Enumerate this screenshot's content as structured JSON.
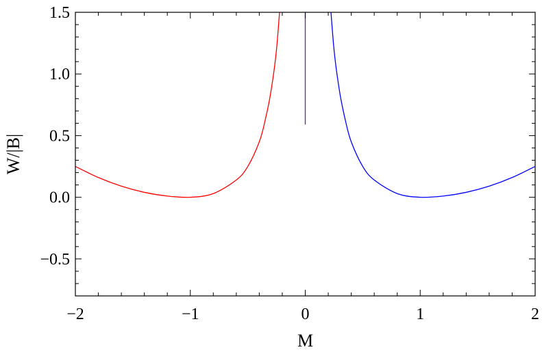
{
  "chart_data": {
    "type": "line",
    "title": "",
    "xlabel": "M",
    "ylabel": "W/|B|",
    "xlim": [
      -2,
      2
    ],
    "ylim": [
      -0.8,
      1.5
    ],
    "grid": false,
    "x_ticks": [
      -2,
      -1,
      0,
      1,
      2
    ],
    "x_tick_labels": [
      "−2",
      "−1",
      "0",
      "1",
      "2"
    ],
    "y_ticks": [
      -0.5,
      0.0,
      0.5,
      1.0,
      1.5
    ],
    "y_tick_labels": [
      "−0.5",
      "0.0",
      "0.5",
      "1.0",
      "1.5"
    ],
    "series": [
      {
        "color": "#ff0000",
        "x": [
          -2.0,
          -1.8,
          -1.6,
          -1.4,
          -1.2,
          -1.0,
          -0.8,
          -0.6,
          -0.5,
          -0.4,
          -0.35,
          -0.3,
          -0.25,
          -0.2
        ],
        "y": [
          0.25,
          0.16,
          0.09,
          0.04,
          0.01,
          0.0,
          0.03,
          0.14,
          0.25,
          0.45,
          0.62,
          0.85,
          1.2,
          1.8
        ]
      },
      {
        "color": "#0000ff",
        "x": [
          0.2,
          0.25,
          0.3,
          0.35,
          0.4,
          0.5,
          0.6,
          0.8,
          1.0,
          1.2,
          1.4,
          1.6,
          1.8,
          2.0
        ],
        "y": [
          1.8,
          1.2,
          0.85,
          0.62,
          0.45,
          0.25,
          0.14,
          0.03,
          0.0,
          0.01,
          0.04,
          0.09,
          0.16,
          0.25
        ]
      },
      {
        "color": "#5a2aa0",
        "x": [
          0.0,
          0.0
        ],
        "y": [
          0.59,
          1.5
        ]
      }
    ]
  }
}
